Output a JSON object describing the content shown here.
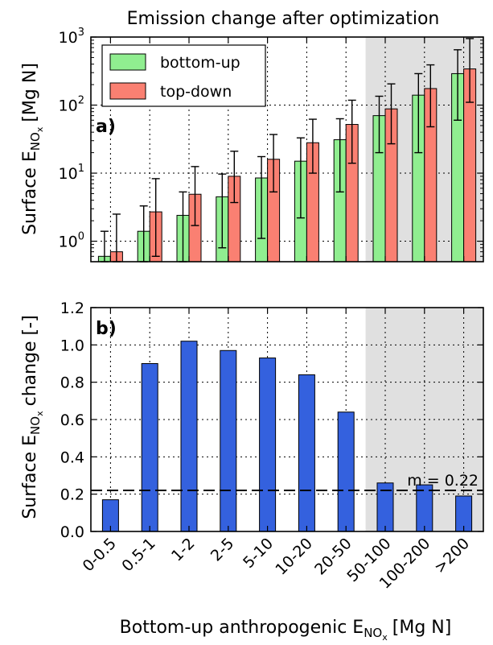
{
  "chart_data": [
    {
      "type": "bar",
      "panel": "a)",
      "title": "Emission change after optimization",
      "ylabel": "Surface E",
      "ylabel_sub": "NO",
      "ylabel_subsub": "x",
      "ylabel_unit": "[Mg N]",
      "yscale": "log",
      "ylim": [
        0.5,
        1000
      ],
      "yticks": [
        {
          "base": "10",
          "exp": "0",
          "value": 1
        },
        {
          "base": "10",
          "exp": "1",
          "value": 10
        },
        {
          "base": "10",
          "exp": "2",
          "value": 100
        },
        {
          "base": "10",
          "exp": "3",
          "value": 1000
        }
      ],
      "grid": true,
      "legend_position": "top-left",
      "shaded_from_category": "50-100",
      "shade_color": "#e0e0e0",
      "categories": [
        "0-0.5",
        "0.5-1",
        "1-2",
        "2-5",
        "5-10",
        "10-20",
        "20-50",
        "50-100",
        "100-200",
        ">200"
      ],
      "series": [
        {
          "name": "bottom-up",
          "color": "#90ee90",
          "values": [
            0.6,
            1.4,
            2.4,
            4.5,
            8.5,
            15,
            31,
            70,
            140,
            290
          ],
          "error_low": [
            0.5,
            0.5,
            0.5,
            0.8,
            1.1,
            2.2,
            5.3,
            20,
            20,
            60
          ],
          "error_high": [
            1.4,
            3.3,
            5.3,
            9.7,
            17.5,
            33,
            63,
            135,
            290,
            650
          ]
        },
        {
          "name": "top-down",
          "color": "#fa8072",
          "values": [
            0.7,
            2.7,
            4.9,
            9,
            16,
            28,
            52,
            88,
            175,
            340
          ],
          "error_low": [
            0.5,
            0.6,
            1.7,
            3.7,
            5.3,
            10,
            14,
            27,
            48,
            110
          ],
          "error_high": [
            2.5,
            8.3,
            12.5,
            21,
            37,
            62,
            118,
            205,
            390,
            950
          ]
        }
      ]
    },
    {
      "type": "bar",
      "panel": "b)",
      "xlabel": "Bottom-up anthropogenic E",
      "xlabel_sub": "NO",
      "xlabel_subsub": "x",
      "xlabel_unit": "[Mg N]",
      "ylabel": "Surface E",
      "ylabel_sub": "NO",
      "ylabel_subsub": "x",
      "ylabel_unit": "change [-]",
      "ylim": [
        0,
        1.2
      ],
      "yticks": [
        "0.0",
        "0.2",
        "0.4",
        "0.6",
        "0.8",
        "1.0",
        "1.2"
      ],
      "grid": true,
      "shaded_from_category": "50-100",
      "shade_color": "#e0e0e0",
      "bar_color": "#3461de",
      "categories": [
        "0-0.5",
        "0.5-1",
        "1-2",
        "2-5",
        "5-10",
        "10-20",
        "20-50",
        "50-100",
        "100-200",
        ">200"
      ],
      "values": [
        0.17,
        0.9,
        1.02,
        0.97,
        0.93,
        0.84,
        0.64,
        0.26,
        0.25,
        0.19
      ],
      "reference_line": {
        "value": 0.22,
        "label": "m = 0.22"
      }
    }
  ]
}
